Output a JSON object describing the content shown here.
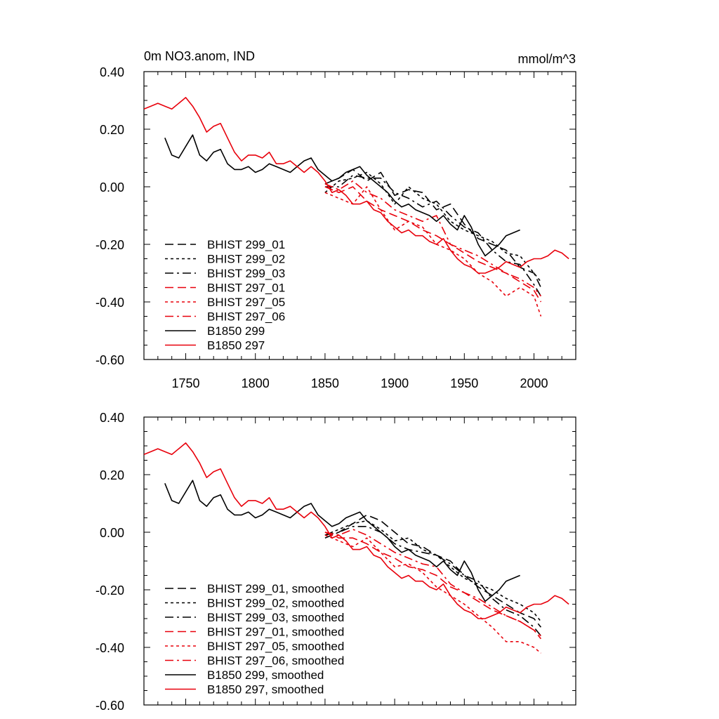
{
  "chart_data": [
    {
      "type": "line",
      "title_left": "0m NO3.anom, IND",
      "title_right": "mmol/m^3",
      "xlim": [
        1720,
        2030
      ],
      "ylim": [
        -0.6,
        0.4
      ],
      "x_ticks": [
        1750,
        1800,
        1850,
        1900,
        1950,
        2000
      ],
      "x_tick_labels": [
        "1750",
        "1800",
        "1850",
        "1900",
        "1950",
        "2000"
      ],
      "y_ticks": [
        0.4,
        0.2,
        0.0,
        -0.2,
        -0.4,
        -0.6
      ],
      "y_tick_labels": [
        "0.40",
        "0.20",
        "0.00",
        "-0.20",
        "-0.40",
        "-0.60"
      ],
      "legend_position": "lower-left",
      "series": [
        {
          "name": "BHIST 299_01",
          "color": "#000000",
          "dash": "dash",
          "x": [
            1850,
            1860,
            1870,
            1880,
            1890,
            1900,
            1910,
            1920,
            1930,
            1940,
            1950,
            1960,
            1970,
            1980,
            1990,
            2000,
            2005
          ],
          "y": [
            0.01,
            0.03,
            0.06,
            0.02,
            0.05,
            -0.03,
            -0.01,
            -0.02,
            -0.08,
            -0.06,
            -0.13,
            -0.18,
            -0.2,
            -0.22,
            -0.28,
            -0.3,
            -0.35
          ]
        },
        {
          "name": "BHIST 299_02",
          "color": "#000000",
          "dash": "dot",
          "x": [
            1850,
            1860,
            1870,
            1880,
            1890,
            1900,
            1910,
            1920,
            1930,
            1940,
            1950,
            1960,
            1970,
            1980,
            1990,
            2000,
            2005
          ],
          "y": [
            -0.02,
            0.02,
            0.03,
            0.05,
            0.01,
            -0.06,
            0.0,
            -0.04,
            -0.06,
            -0.12,
            -0.15,
            -0.17,
            -0.19,
            -0.23,
            -0.24,
            -0.3,
            -0.33
          ]
        },
        {
          "name": "BHIST 299_03",
          "color": "#000000",
          "dash": "dashdot",
          "x": [
            1850,
            1860,
            1870,
            1880,
            1890,
            1900,
            1910,
            1920,
            1930,
            1940,
            1950,
            1960,
            1970,
            1980,
            1990,
            2000,
            2005
          ],
          "y": [
            0.0,
            0.0,
            0.04,
            0.03,
            0.03,
            -0.02,
            -0.04,
            -0.07,
            -0.05,
            -0.1,
            -0.14,
            -0.16,
            -0.22,
            -0.26,
            -0.27,
            -0.34,
            -0.38
          ]
        },
        {
          "name": "BHIST 297_01",
          "color": "#e8000b",
          "dash": "dash",
          "x": [
            1850,
            1860,
            1870,
            1880,
            1890,
            1900,
            1910,
            1920,
            1930,
            1940,
            1950,
            1960,
            1970,
            1980,
            1990,
            2000,
            2005
          ],
          "y": [
            0.0,
            -0.02,
            0.0,
            -0.05,
            -0.08,
            -0.1,
            -0.12,
            -0.15,
            -0.17,
            -0.2,
            -0.23,
            -0.26,
            -0.28,
            -0.3,
            -0.33,
            -0.36,
            -0.4
          ]
        },
        {
          "name": "BHIST 297_05",
          "color": "#e8000b",
          "dash": "dot",
          "x": [
            1850,
            1860,
            1870,
            1880,
            1890,
            1900,
            1910,
            1920,
            1930,
            1940,
            1950,
            1960,
            1970,
            1980,
            1990,
            2000,
            2005
          ],
          "y": [
            -0.02,
            -0.04,
            -0.06,
            0.0,
            -0.08,
            -0.15,
            -0.12,
            -0.14,
            -0.2,
            -0.22,
            -0.25,
            -0.3,
            -0.33,
            -0.38,
            -0.35,
            -0.38,
            -0.45
          ]
        },
        {
          "name": "BHIST 297_06",
          "color": "#e8000b",
          "dash": "dashdot",
          "x": [
            1850,
            1860,
            1870,
            1880,
            1890,
            1900,
            1910,
            1920,
            1930,
            1940,
            1950,
            1960,
            1970,
            1980,
            1990,
            2000,
            2005
          ],
          "y": [
            0.01,
            -0.01,
            0.02,
            -0.02,
            -0.04,
            -0.08,
            -0.1,
            -0.12,
            -0.1,
            -0.2,
            -0.22,
            -0.24,
            -0.27,
            -0.3,
            -0.32,
            -0.35,
            -0.38
          ]
        },
        {
          "name": "B1850 299",
          "color": "#000000",
          "dash": "solid",
          "x": [
            1735,
            1740,
            1745,
            1750,
            1755,
            1760,
            1765,
            1770,
            1775,
            1780,
            1785,
            1790,
            1795,
            1800,
            1805,
            1810,
            1815,
            1820,
            1825,
            1830,
            1835,
            1840,
            1845,
            1850,
            1855,
            1860,
            1865,
            1870,
            1875,
            1880,
            1885,
            1890,
            1895,
            1900,
            1905,
            1910,
            1915,
            1920,
            1925,
            1930,
            1935,
            1940,
            1945,
            1950,
            1955,
            1960,
            1965,
            1970,
            1975,
            1980,
            1985,
            1990
          ],
          "y": [
            0.17,
            0.11,
            0.1,
            0.14,
            0.18,
            0.11,
            0.09,
            0.12,
            0.13,
            0.08,
            0.06,
            0.06,
            0.07,
            0.05,
            0.06,
            0.08,
            0.07,
            0.06,
            0.05,
            0.07,
            0.09,
            0.1,
            0.06,
            0.04,
            0.02,
            0.03,
            0.05,
            0.06,
            0.07,
            0.04,
            0.02,
            0.0,
            -0.02,
            -0.05,
            -0.07,
            -0.06,
            -0.08,
            -0.09,
            -0.1,
            -0.12,
            -0.1,
            -0.13,
            -0.15,
            -0.1,
            -0.14,
            -0.2,
            -0.24,
            -0.22,
            -0.2,
            -0.17,
            -0.16,
            -0.15
          ]
        },
        {
          "name": "B1850 297",
          "color": "#e8000b",
          "dash": "solid",
          "x": [
            1720,
            1725,
            1730,
            1735,
            1740,
            1745,
            1750,
            1755,
            1760,
            1765,
            1770,
            1775,
            1780,
            1785,
            1790,
            1795,
            1800,
            1805,
            1810,
            1815,
            1820,
            1825,
            1830,
            1835,
            1840,
            1845,
            1850,
            1855,
            1860,
            1865,
            1870,
            1875,
            1880,
            1885,
            1890,
            1895,
            1900,
            1905,
            1910,
            1915,
            1920,
            1925,
            1930,
            1935,
            1940,
            1945,
            1950,
            1955,
            1960,
            1965,
            1970,
            1975,
            1980,
            1985,
            1990,
            1995,
            2000,
            2005,
            2010,
            2015,
            2020,
            2025
          ],
          "y": [
            0.27,
            0.28,
            0.29,
            0.28,
            0.27,
            0.29,
            0.31,
            0.28,
            0.24,
            0.19,
            0.21,
            0.22,
            0.17,
            0.12,
            0.09,
            0.11,
            0.11,
            0.1,
            0.12,
            0.08,
            0.08,
            0.09,
            0.07,
            0.05,
            0.07,
            0.05,
            0.02,
            -0.02,
            -0.01,
            -0.03,
            -0.06,
            -0.06,
            -0.05,
            -0.08,
            -0.09,
            -0.12,
            -0.14,
            -0.16,
            -0.15,
            -0.17,
            -0.17,
            -0.19,
            -0.2,
            -0.18,
            -0.22,
            -0.25,
            -0.27,
            -0.28,
            -0.3,
            -0.3,
            -0.29,
            -0.28,
            -0.26,
            -0.27,
            -0.28,
            -0.26,
            -0.25,
            -0.25,
            -0.24,
            -0.22,
            -0.23,
            -0.25
          ]
        }
      ]
    },
    {
      "type": "line",
      "xlim": [
        1720,
        2030
      ],
      "ylim": [
        -0.6,
        0.4
      ],
      "x_ticks": [
        1750,
        1800,
        1850,
        1900,
        1950,
        2000
      ],
      "y_ticks": [
        0.4,
        0.2,
        0.0,
        -0.2,
        -0.4,
        -0.6
      ],
      "y_tick_labels": [
        "0.40",
        "0.20",
        "0.00",
        "-0.20",
        "-0.40",
        "-0.60"
      ],
      "legend_position": "lower-left",
      "series": [
        {
          "name": "BHIST 299_01, smoothed",
          "color": "#000000",
          "dash": "dash",
          "x": [
            1850,
            1860,
            1870,
            1880,
            1890,
            1900,
            1910,
            1920,
            1930,
            1940,
            1950,
            1960,
            1970,
            1980,
            1990,
            2000,
            2005
          ],
          "y": [
            -0.01,
            0.0,
            0.03,
            0.06,
            0.04,
            0.0,
            -0.04,
            -0.05,
            -0.08,
            -0.1,
            -0.15,
            -0.19,
            -0.22,
            -0.25,
            -0.28,
            -0.3,
            -0.33
          ]
        },
        {
          "name": "BHIST 299_02, smoothed",
          "color": "#000000",
          "dash": "dot",
          "x": [
            1850,
            1860,
            1870,
            1880,
            1890,
            1900,
            1910,
            1920,
            1930,
            1940,
            1950,
            1960,
            1970,
            1980,
            1990,
            2000,
            2005
          ],
          "y": [
            -0.01,
            0.01,
            0.03,
            0.04,
            0.01,
            -0.03,
            -0.02,
            -0.06,
            -0.08,
            -0.12,
            -0.16,
            -0.18,
            -0.2,
            -0.23,
            -0.25,
            -0.28,
            -0.31
          ]
        },
        {
          "name": "BHIST 299_03, smoothed",
          "color": "#000000",
          "dash": "dashdot",
          "x": [
            1850,
            1860,
            1870,
            1880,
            1890,
            1900,
            1910,
            1920,
            1930,
            1940,
            1950,
            1960,
            1970,
            1980,
            1990,
            2000,
            2005
          ],
          "y": [
            -0.02,
            0.0,
            0.02,
            0.02,
            0.0,
            -0.04,
            -0.06,
            -0.07,
            -0.08,
            -0.11,
            -0.15,
            -0.17,
            -0.23,
            -0.27,
            -0.29,
            -0.33,
            -0.36
          ]
        },
        {
          "name": "BHIST 297_01, smoothed",
          "color": "#e8000b",
          "dash": "dash",
          "x": [
            1850,
            1860,
            1870,
            1880,
            1890,
            1900,
            1910,
            1920,
            1930,
            1940,
            1950,
            1960,
            1970,
            1980,
            1990,
            2000,
            2005
          ],
          "y": [
            0.0,
            -0.02,
            -0.02,
            -0.04,
            -0.07,
            -0.09,
            -0.12,
            -0.13,
            -0.15,
            -0.19,
            -0.21,
            -0.24,
            -0.27,
            -0.29,
            -0.31,
            -0.34,
            -0.36
          ]
        },
        {
          "name": "BHIST 297_05, smoothed",
          "color": "#e8000b",
          "dash": "dot",
          "x": [
            1850,
            1860,
            1870,
            1880,
            1890,
            1900,
            1910,
            1920,
            1930,
            1940,
            1950,
            1960,
            1970,
            1980,
            1990,
            2000,
            2005
          ],
          "y": [
            -0.01,
            -0.03,
            -0.05,
            -0.02,
            -0.07,
            -0.12,
            -0.11,
            -0.14,
            -0.19,
            -0.22,
            -0.25,
            -0.29,
            -0.33,
            -0.38,
            -0.38,
            -0.4,
            -0.42
          ]
        },
        {
          "name": "BHIST 297_06, smoothed",
          "color": "#e8000b",
          "dash": "dashdot",
          "x": [
            1850,
            1860,
            1870,
            1880,
            1890,
            1900,
            1910,
            1920,
            1930,
            1940,
            1950,
            1960,
            1970,
            1980,
            1990,
            2000,
            2005
          ],
          "y": [
            0.0,
            -0.01,
            0.01,
            -0.01,
            -0.04,
            -0.07,
            -0.09,
            -0.11,
            -0.12,
            -0.18,
            -0.21,
            -0.23,
            -0.26,
            -0.29,
            -0.31,
            -0.34,
            -0.37
          ]
        },
        {
          "name": "B1850 299, smoothed",
          "color": "#000000",
          "dash": "solid",
          "x": [
            1735,
            1740,
            1745,
            1750,
            1755,
            1760,
            1765,
            1770,
            1775,
            1780,
            1785,
            1790,
            1795,
            1800,
            1805,
            1810,
            1815,
            1820,
            1825,
            1830,
            1835,
            1840,
            1845,
            1850,
            1855,
            1860,
            1865,
            1870,
            1875,
            1880,
            1885,
            1890,
            1895,
            1900,
            1905,
            1910,
            1915,
            1920,
            1925,
            1930,
            1935,
            1940,
            1945,
            1950,
            1955,
            1960,
            1965,
            1970,
            1975,
            1980,
            1985,
            1990
          ],
          "y": [
            0.17,
            0.11,
            0.1,
            0.14,
            0.18,
            0.11,
            0.09,
            0.12,
            0.13,
            0.08,
            0.06,
            0.06,
            0.07,
            0.05,
            0.06,
            0.08,
            0.07,
            0.06,
            0.05,
            0.07,
            0.09,
            0.1,
            0.06,
            0.04,
            0.02,
            0.03,
            0.05,
            0.06,
            0.07,
            0.04,
            0.02,
            0.0,
            -0.02,
            -0.05,
            -0.07,
            -0.06,
            -0.08,
            -0.09,
            -0.1,
            -0.12,
            -0.1,
            -0.13,
            -0.15,
            -0.1,
            -0.14,
            -0.2,
            -0.24,
            -0.22,
            -0.2,
            -0.17,
            -0.16,
            -0.15
          ]
        },
        {
          "name": "B1850 297, smoothed",
          "color": "#e8000b",
          "dash": "solid",
          "x": [
            1720,
            1725,
            1730,
            1735,
            1740,
            1745,
            1750,
            1755,
            1760,
            1765,
            1770,
            1775,
            1780,
            1785,
            1790,
            1795,
            1800,
            1805,
            1810,
            1815,
            1820,
            1825,
            1830,
            1835,
            1840,
            1845,
            1850,
            1855,
            1860,
            1865,
            1870,
            1875,
            1880,
            1885,
            1890,
            1895,
            1900,
            1905,
            1910,
            1915,
            1920,
            1925,
            1930,
            1935,
            1940,
            1945,
            1950,
            1955,
            1960,
            1965,
            1970,
            1975,
            1980,
            1985,
            1990,
            1995,
            2000,
            2005,
            2010,
            2015,
            2020,
            2025
          ],
          "y": [
            0.27,
            0.28,
            0.29,
            0.28,
            0.27,
            0.29,
            0.31,
            0.28,
            0.24,
            0.19,
            0.21,
            0.22,
            0.17,
            0.12,
            0.09,
            0.11,
            0.11,
            0.1,
            0.12,
            0.08,
            0.08,
            0.09,
            0.07,
            0.05,
            0.07,
            0.05,
            0.02,
            -0.02,
            -0.01,
            -0.03,
            -0.06,
            -0.06,
            -0.05,
            -0.08,
            -0.09,
            -0.12,
            -0.14,
            -0.16,
            -0.15,
            -0.17,
            -0.17,
            -0.19,
            -0.2,
            -0.18,
            -0.22,
            -0.25,
            -0.27,
            -0.28,
            -0.3,
            -0.3,
            -0.29,
            -0.28,
            -0.26,
            -0.27,
            -0.28,
            -0.26,
            -0.25,
            -0.25,
            -0.24,
            -0.22,
            -0.23,
            -0.25
          ]
        }
      ]
    }
  ]
}
